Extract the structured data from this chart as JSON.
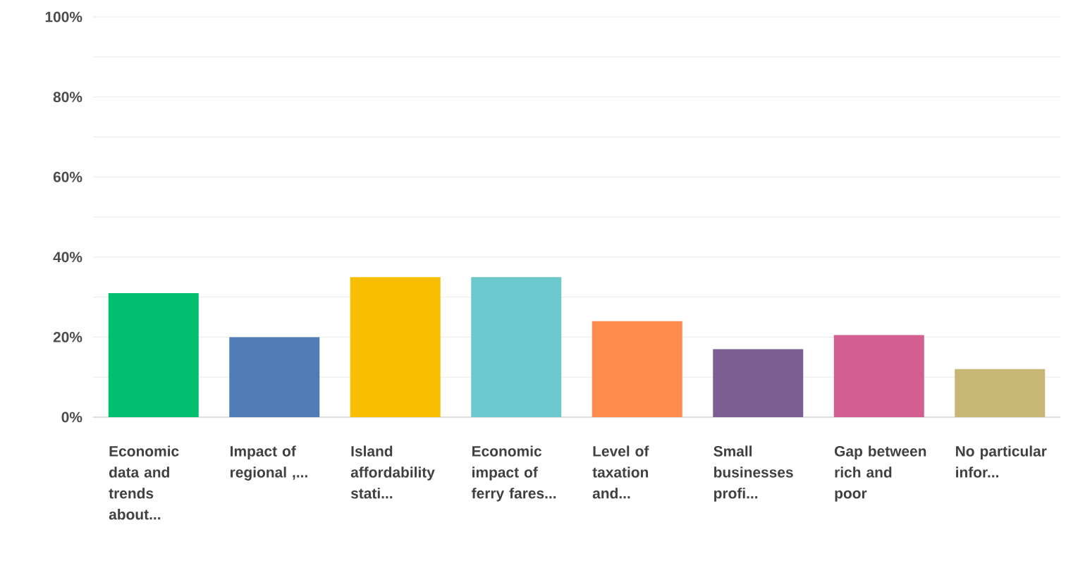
{
  "chart_data": {
    "type": "bar",
    "categories": [
      "Economic data and trends about...",
      "Impact of regional ,...",
      "Island affordability stati...",
      "Economic impact of ferry fares...",
      "Level of taxation and...",
      "Small businesses profi...",
      "Gap between rich and poor",
      "No particular infor..."
    ],
    "values": [
      31,
      20,
      35,
      35,
      24,
      17,
      20.5,
      12
    ],
    "colors": [
      "#00bf6f",
      "#507cb6",
      "#f9be00",
      "#6bc8cd",
      "#ff8b4f",
      "#7d5e90",
      "#d25f90",
      "#c8b677"
    ],
    "ylim": [
      0,
      100
    ],
    "yticks": [
      {
        "value": 0,
        "label": "0%"
      },
      {
        "value": 10,
        "label": null
      },
      {
        "value": 20,
        "label": "20%"
      },
      {
        "value": 30,
        "label": null
      },
      {
        "value": 40,
        "label": "40%"
      },
      {
        "value": 50,
        "label": null
      },
      {
        "value": 60,
        "label": "60%"
      },
      {
        "value": 70,
        "label": null
      },
      {
        "value": 80,
        "label": "80%"
      },
      {
        "value": 90,
        "label": null
      },
      {
        "value": 100,
        "label": "100%"
      }
    ],
    "grid": "y"
  }
}
